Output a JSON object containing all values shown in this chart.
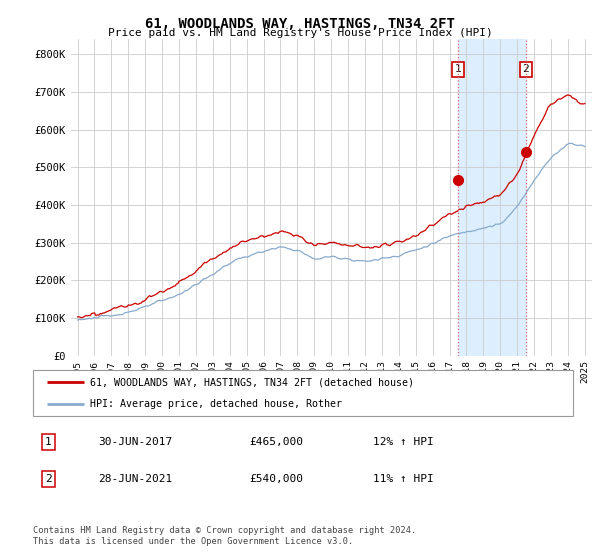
{
  "title": "61, WOODLANDS WAY, HASTINGS, TN34 2FT",
  "subtitle": "Price paid vs. HM Land Registry's House Price Index (HPI)",
  "ylabel_ticks": [
    "£0",
    "£100K",
    "£200K",
    "£300K",
    "£400K",
    "£500K",
    "£600K",
    "£700K",
    "£800K"
  ],
  "ytick_values": [
    0,
    100000,
    200000,
    300000,
    400000,
    500000,
    600000,
    700000,
    800000
  ],
  "ylim": [
    0,
    840000
  ],
  "sale1_date": 2017.5,
  "sale1_price": 465000,
  "sale1_label": "1",
  "sale2_date": 2021.5,
  "sale2_price": 540000,
  "sale2_label": "2",
  "line_color_red": "#cc0000",
  "line_color_blue": "#88aacc",
  "vline_color": "#dd6666",
  "shade_color": "#ddeeff",
  "marker_color_red": "#cc0000",
  "grid_color": "#cccccc",
  "background_color": "#ffffff",
  "legend_entry1": "61, WOODLANDS WAY, HASTINGS, TN34 2FT (detached house)",
  "legend_entry2": "HPI: Average price, detached house, Rother",
  "table_row1": [
    "1",
    "30-JUN-2017",
    "£465,000",
    "12% ↑ HPI"
  ],
  "table_row2": [
    "2",
    "28-JUN-2021",
    "£540,000",
    "11% ↑ HPI"
  ],
  "footnote": "Contains HM Land Registry data © Crown copyright and database right 2024.\nThis data is licensed under the Open Government Licence v3.0.",
  "xlim_start": 1994.6,
  "xlim_end": 2025.4,
  "xtick_years": [
    1995,
    1996,
    1997,
    1998,
    1999,
    2000,
    2001,
    2002,
    2003,
    2004,
    2005,
    2006,
    2007,
    2008,
    2009,
    2010,
    2011,
    2012,
    2013,
    2014,
    2015,
    2016,
    2017,
    2018,
    2019,
    2020,
    2021,
    2022,
    2023,
    2024,
    2025
  ]
}
